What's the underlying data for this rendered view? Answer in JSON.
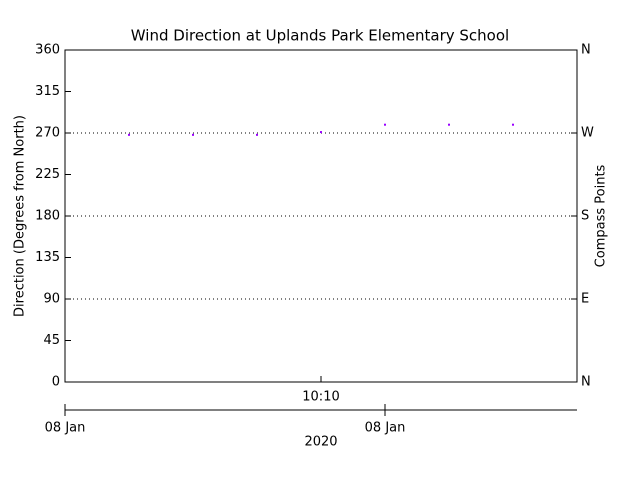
{
  "chart_data": {
    "type": "scatter",
    "title": "Wind Direction at Uplands Park Elementary School",
    "ylabel": "Direction (Degrees from North)",
    "y2label": "Compass Points",
    "x": [
      607,
      608,
      609,
      610,
      611,
      612,
      613
    ],
    "series": [
      {
        "name": "Wind Direction",
        "color": "#9900ff",
        "values": [
          268,
          268,
          268,
          271,
          279,
          279,
          279
        ]
      }
    ],
    "xlim": [
      606,
      614
    ],
    "xticks": [
      {
        "value": 610,
        "label": "10:10"
      }
    ],
    "ylim": [
      0,
      360
    ],
    "yticks": [
      0,
      45,
      90,
      135,
      180,
      225,
      270,
      315,
      360
    ],
    "y2lim": [
      0,
      360
    ],
    "y2ticks": [
      {
        "value": 0,
        "label": "N"
      },
      {
        "value": 90,
        "label": "E"
      },
      {
        "value": 180,
        "label": "S"
      },
      {
        "value": 270,
        "label": "W"
      },
      {
        "value": 360,
        "label": "N"
      }
    ],
    "grid": [
      90,
      180,
      270
    ],
    "date_axis": {
      "ticks": [
        {
          "value": 606,
          "label": "08 Jan"
        },
        {
          "value": 611,
          "label": "08 Jan"
        }
      ],
      "label": "2020"
    }
  }
}
